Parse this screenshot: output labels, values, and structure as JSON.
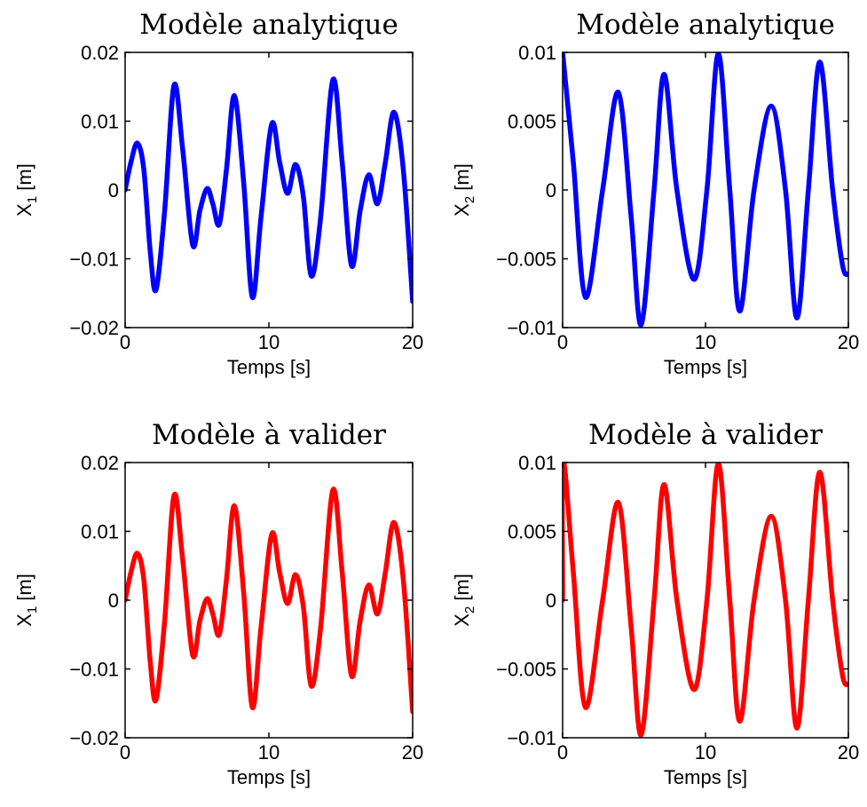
{
  "chart_data": [
    {
      "type": "line",
      "title": "Modèle analytique",
      "xlabel": "Temps [s]",
      "ylabel_main": "X",
      "ylabel_sub": "1",
      "ylabel_unit": " [m]",
      "xlim": [
        0,
        20
      ],
      "ylim": [
        -0.02,
        0.02
      ],
      "xticks": [
        0,
        10,
        20
      ],
      "xtick_labels": [
        "0",
        "10",
        "20"
      ],
      "yticks": [
        0.02,
        0.01,
        0,
        -0.01,
        -0.02
      ],
      "ytick_labels": [
        "0.02",
        "0.01",
        "0",
        "−0.01",
        "−0.02"
      ],
      "color": "#0000ff",
      "series": [
        {
          "x": [
            0,
            0.4,
            0.85,
            1.3,
            1.75,
            2.15,
            2.75,
            3.4,
            4.0,
            4.7,
            5.2,
            5.7,
            6.1,
            6.55,
            7.05,
            7.6,
            8.25,
            8.85,
            9.45,
            10.2,
            10.75,
            11.3,
            11.85,
            12.4,
            12.95,
            13.6,
            14.45,
            15.1,
            15.75,
            16.35,
            16.95,
            17.55,
            18.1,
            18.7,
            19.35,
            20.0
          ],
          "y": [
            0.0,
            0.004,
            0.0068,
            0.003,
            -0.009,
            -0.0145,
            -0.003,
            0.0152,
            0.006,
            -0.008,
            -0.003,
            0.0002,
            -0.002,
            -0.005,
            0.003,
            0.0137,
            0.001,
            -0.0156,
            -0.004,
            0.0096,
            0.004,
            -0.0005,
            0.0037,
            -0.001,
            -0.0125,
            -0.004,
            0.016,
            0.004,
            -0.011,
            -0.003,
            0.0022,
            -0.002,
            0.004,
            0.0113,
            0.003,
            -0.0162
          ]
        }
      ]
    },
    {
      "type": "line",
      "title": "Modèle analytique",
      "xlabel": "Temps [s]",
      "ylabel_main": "X",
      "ylabel_sub": "2",
      "ylabel_unit": " [m]",
      "xlim": [
        0,
        20
      ],
      "ylim": [
        -0.01,
        0.01
      ],
      "xticks": [
        0,
        10,
        20
      ],
      "xtick_labels": [
        "0",
        "10",
        "20"
      ],
      "yticks": [
        0.01,
        0.005,
        0,
        -0.005,
        -0.01
      ],
      "ytick_labels": [
        "0.01",
        "0.005",
        "0",
        "−0.005",
        "−0.01"
      ],
      "color": "#0000ff",
      "series": [
        {
          "x": [
            0,
            0.75,
            1.6,
            2.8,
            3.9,
            4.8,
            5.5,
            6.4,
            7.1,
            8.0,
            9.2,
            10.1,
            10.9,
            11.7,
            12.4,
            13.4,
            14.6,
            15.6,
            16.4,
            17.2,
            18.0,
            18.9,
            19.6,
            20.0
          ],
          "y": [
            0.01,
            0.002,
            -0.0078,
            0.0,
            0.0071,
            -0.002,
            -0.0098,
            0.0,
            0.0084,
            0.0,
            -0.0065,
            0.0,
            0.0099,
            0.0,
            -0.0088,
            0.0,
            0.0061,
            0.0,
            -0.0093,
            0.0,
            0.0093,
            0.0,
            -0.0055,
            -0.0061
          ]
        }
      ]
    },
    {
      "type": "line",
      "title": "Modèle à valider",
      "xlabel": "Temps [s]",
      "ylabel_main": "X",
      "ylabel_sub": "1",
      "ylabel_unit": " [m]",
      "xlim": [
        0,
        20
      ],
      "ylim": [
        -0.02,
        0.02
      ],
      "xticks": [
        0,
        10,
        20
      ],
      "xtick_labels": [
        "0",
        "10",
        "20"
      ],
      "yticks": [
        0.02,
        0.01,
        0,
        -0.01,
        -0.02
      ],
      "ytick_labels": [
        "0.02",
        "0.01",
        "0",
        "−0.01",
        "−0.02"
      ],
      "color": "#ff0000",
      "series": [
        {
          "x": [
            0,
            0.4,
            0.85,
            1.3,
            1.75,
            2.15,
            2.75,
            3.4,
            4.0,
            4.7,
            5.2,
            5.7,
            6.1,
            6.55,
            7.05,
            7.6,
            8.25,
            8.85,
            9.45,
            10.2,
            10.75,
            11.3,
            11.85,
            12.4,
            12.95,
            13.6,
            14.45,
            15.1,
            15.75,
            16.35,
            16.95,
            17.55,
            18.1,
            18.7,
            19.35,
            20.0
          ],
          "y": [
            0.0,
            0.004,
            0.0068,
            0.003,
            -0.009,
            -0.0145,
            -0.003,
            0.0152,
            0.006,
            -0.008,
            -0.003,
            0.0002,
            -0.002,
            -0.005,
            0.003,
            0.0137,
            0.001,
            -0.0156,
            -0.004,
            0.0096,
            0.004,
            -0.0005,
            0.0037,
            -0.001,
            -0.0125,
            -0.004,
            0.016,
            0.004,
            -0.011,
            -0.003,
            0.0022,
            -0.002,
            0.004,
            0.0113,
            0.003,
            -0.0162
          ]
        }
      ]
    },
    {
      "type": "line",
      "title": "Modèle à valider",
      "xlabel": "Temps [s]",
      "ylabel_main": "X",
      "ylabel_sub": "2",
      "ylabel_unit": " [m]",
      "xlim": [
        0,
        20
      ],
      "ylim": [
        -0.01,
        0.01
      ],
      "xticks": [
        0,
        10,
        20
      ],
      "xtick_labels": [
        "0",
        "10",
        "20"
      ],
      "yticks": [
        0.01,
        0.005,
        0,
        -0.005,
        -0.01
      ],
      "ytick_labels": [
        "0.01",
        "0.005",
        "0",
        "−0.005",
        "−0.01"
      ],
      "color": "#ff0000",
      "series": [
        {
          "x": [
            0,
            0.05,
            0.75,
            1.6,
            2.8,
            3.9,
            4.8,
            5.5,
            6.4,
            7.1,
            8.0,
            9.2,
            10.1,
            10.9,
            11.7,
            12.4,
            13.4,
            14.6,
            15.6,
            16.4,
            17.2,
            18.0,
            18.9,
            19.6,
            20.0
          ],
          "y": [
            0.0,
            0.01,
            0.002,
            -0.0078,
            0.0,
            0.0071,
            -0.002,
            -0.0098,
            0.0,
            0.0084,
            0.0,
            -0.0065,
            0.0,
            0.0099,
            0.0,
            -0.0088,
            0.0,
            0.0061,
            0.0,
            -0.0093,
            0.0,
            0.0093,
            0.0,
            -0.0055,
            -0.0061
          ]
        }
      ]
    }
  ]
}
